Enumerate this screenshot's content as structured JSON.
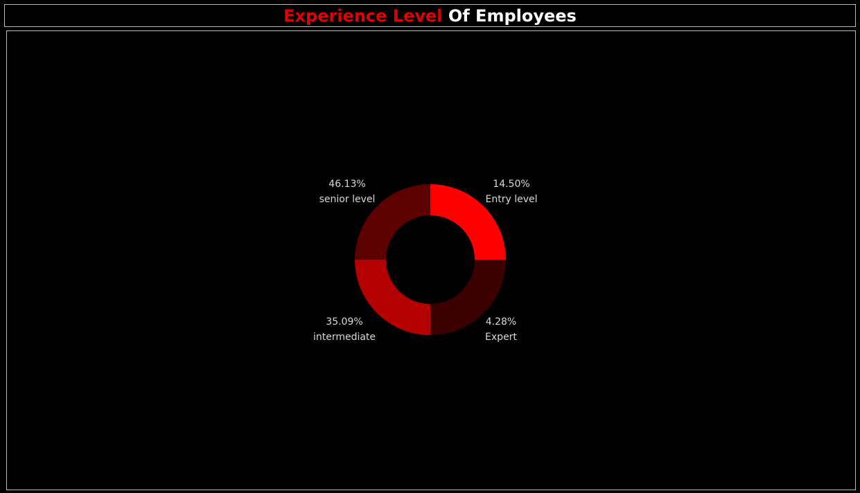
{
  "title": {
    "highlight": "Experience Level",
    "rest": " Of Employees",
    "highlight_color": "#e00000",
    "rest_color": "#ffffff"
  },
  "chart_data": {
    "type": "pie",
    "style": "donut",
    "slices": [
      {
        "label": "Entry level",
        "value": 14.5,
        "value_text": "14.50%",
        "color": "#ff0000"
      },
      {
        "label": "Expert",
        "value": 4.28,
        "value_text": "4.28%",
        "color": "#3d0000"
      },
      {
        "label": "intermediate",
        "value": 35.09,
        "value_text": "35.09%",
        "color": "#b40000"
      },
      {
        "label": "senior level",
        "value": 46.13,
        "value_text": "46.13%",
        "color": "#5c0000"
      }
    ]
  }
}
